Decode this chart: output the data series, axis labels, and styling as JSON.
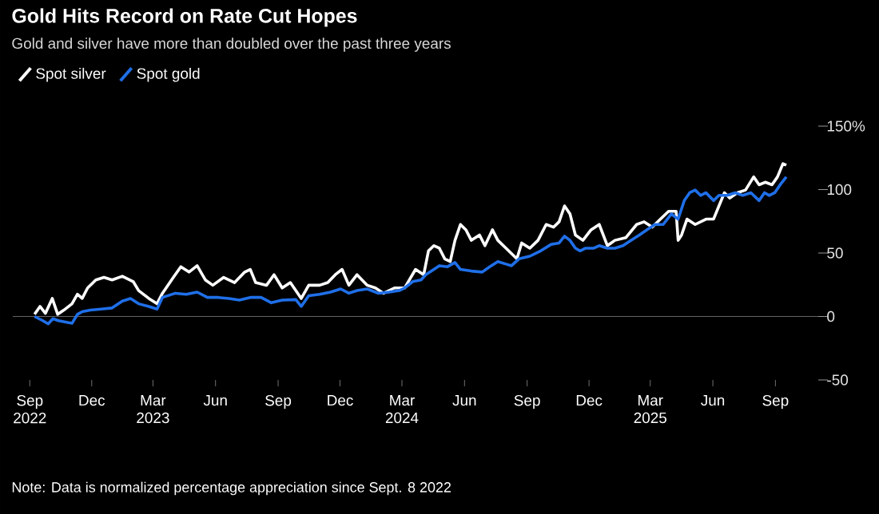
{
  "chart_data": {
    "type": "line",
    "title": "Gold Hits Record on Rate Cut Hopes",
    "subtitle": "Gold and silver have more than doubled over the past three years",
    "annotations": [
      "Note: Data is normalized percentage appreciation since Sept. 8 2022"
    ],
    "xlim": [
      "2022-08-07",
      "2025-11-03"
    ],
    "xticks": [
      {
        "value": "2022-09-01",
        "label": "Sep 2022"
      },
      {
        "value": "2022-12-01",
        "label": "Dec"
      },
      {
        "value": "2023-03-01",
        "label": "Mar 2023"
      },
      {
        "value": "2023-06-01",
        "label": "Jun"
      },
      {
        "value": "2023-09-01",
        "label": "Sep"
      },
      {
        "value": "2023-12-01",
        "label": "Dec"
      },
      {
        "value": "2024-03-01",
        "label": "Mar 2024"
      },
      {
        "value": "2024-06-01",
        "label": "Jun"
      },
      {
        "value": "2024-09-01",
        "label": "Sep"
      },
      {
        "value": "2024-12-01",
        "label": "Dec"
      },
      {
        "value": "2025-03-01",
        "label": "Mar 2025"
      },
      {
        "value": "2025-06-01",
        "label": "Jun"
      },
      {
        "value": "2025-09-01",
        "label": "Sep"
      }
    ],
    "ylim": [
      -50,
      150
    ],
    "yticks": [
      -50,
      0,
      50,
      100,
      {
        "value": 150,
        "label": "150%"
      }
    ],
    "ref_lines": [
      {
        "axis": "y",
        "value": 0,
        "color": "#808080"
      }
    ],
    "legend": "top left",
    "line_style": "solid",
    "grid": false,
    "series": [
      {
        "name": "Spot silver",
        "color": "#ffffff",
        "x": [
          "2022-09-08",
          "2022-09-16",
          "2022-09-24",
          "2022-10-04",
          "2022-10-12",
          "2022-10-21",
          "2022-11-02",
          "2022-11-10",
          "2022-11-17",
          "2022-11-25",
          "2022-12-07",
          "2022-12-19",
          "2022-12-31",
          "2023-01-15",
          "2023-01-31",
          "2023-02-08",
          "2023-02-23",
          "2023-03-07",
          "2023-03-15",
          "2023-03-31",
          "2023-04-11",
          "2023-04-23",
          "2023-05-05",
          "2023-05-17",
          "2023-05-28",
          "2023-06-13",
          "2023-06-29",
          "2023-07-14",
          "2023-07-22",
          "2023-07-30",
          "2023-08-15",
          "2023-08-26",
          "2023-09-07",
          "2023-09-19",
          "2023-10-05",
          "2023-10-16",
          "2023-11-01",
          "2023-11-13",
          "2023-11-24",
          "2023-12-04",
          "2023-12-14",
          "2023-12-26",
          "2024-01-10",
          "2024-01-22",
          "2024-02-03",
          "2024-02-19",
          "2024-03-05",
          "2024-03-21",
          "2024-04-02",
          "2024-04-09",
          "2024-04-17",
          "2024-04-25",
          "2024-05-03",
          "2024-05-11",
          "2024-05-18",
          "2024-05-26",
          "2024-06-03",
          "2024-06-11",
          "2024-06-23",
          "2024-07-01",
          "2024-07-12",
          "2024-07-20",
          "2024-08-01",
          "2024-08-09",
          "2024-08-17",
          "2024-08-24",
          "2024-09-05",
          "2024-09-17",
          "2024-09-29",
          "2024-10-10",
          "2024-10-18",
          "2024-10-26",
          "2024-11-03",
          "2024-11-11",
          "2024-11-22",
          "2024-12-04",
          "2024-12-16",
          "2024-12-28",
          "2025-01-08",
          "2025-01-24",
          "2025-02-09",
          "2025-02-20",
          "2025-03-04",
          "2025-03-16",
          "2025-03-28",
          "2025-04-08",
          "2025-04-11",
          "2025-04-16",
          "2025-04-24",
          "2025-05-06",
          "2025-05-22",
          "2025-06-02",
          "2025-06-10",
          "2025-06-18",
          "2025-06-26",
          "2025-07-07",
          "2025-07-19",
          "2025-07-31",
          "2025-08-08",
          "2025-08-17",
          "2025-08-27",
          "2025-09-04",
          "2025-09-12",
          "2025-09-17"
        ],
        "values": [
          1.7,
          7.9,
          2.5,
          14.2,
          1.7,
          5,
          10,
          17.5,
          14.2,
          22.5,
          28.8,
          30.8,
          28.8,
          31.7,
          27.5,
          20.4,
          14.2,
          10,
          18.3,
          30.8,
          39.2,
          35,
          40,
          28.8,
          24.6,
          30.8,
          26.7,
          35,
          37.1,
          26.7,
          24.6,
          32.9,
          22.5,
          26.7,
          14.2,
          24.6,
          24.6,
          26.7,
          32.9,
          37.1,
          24.6,
          32.9,
          24.6,
          22.5,
          18.3,
          22.5,
          22.5,
          37.1,
          32.9,
          51.7,
          55.8,
          53.8,
          45.4,
          43.3,
          60,
          72.5,
          68.3,
          60,
          64.2,
          55.8,
          68.3,
          60,
          53.8,
          49.6,
          45.4,
          57.9,
          53.8,
          60,
          72.5,
          70.4,
          74.6,
          87.1,
          80.8,
          64.2,
          60,
          68.3,
          72.5,
          55.8,
          60,
          62.1,
          72.5,
          74.6,
          70.4,
          76.7,
          82.9,
          82.9,
          60,
          64.2,
          76.7,
          72.5,
          76.7,
          76.7,
          87.1,
          97.5,
          93.3,
          97.5,
          99.6,
          110,
          103.8,
          105.8,
          103.8,
          110,
          120.4,
          119.2
        ]
      },
      {
        "name": "Spot gold",
        "color": "#1f6fe8",
        "x": [
          "2022-09-08",
          "2022-09-20",
          "2022-09-28",
          "2022-10-05",
          "2022-10-13",
          "2022-10-25",
          "2022-11-02",
          "2022-11-10",
          "2022-11-17",
          "2022-11-29",
          "2022-12-15",
          "2022-12-31",
          "2023-01-15",
          "2023-01-27",
          "2023-02-08",
          "2023-02-23",
          "2023-03-07",
          "2023-03-15",
          "2023-04-03",
          "2023-04-19",
          "2023-05-05",
          "2023-05-20",
          "2023-06-05",
          "2023-06-21",
          "2023-07-06",
          "2023-07-22",
          "2023-08-07",
          "2023-08-22",
          "2023-09-07",
          "2023-09-27",
          "2023-10-05",
          "2023-10-16",
          "2023-11-01",
          "2023-11-17",
          "2023-12-02",
          "2023-12-14",
          "2023-12-26",
          "2024-01-10",
          "2024-01-26",
          "2024-02-11",
          "2024-02-26",
          "2024-03-05",
          "2024-03-17",
          "2024-03-29",
          "2024-04-05",
          "2024-04-17",
          "2024-04-25",
          "2024-05-07",
          "2024-05-18",
          "2024-05-26",
          "2024-06-11",
          "2024-06-27",
          "2024-07-08",
          "2024-07-20",
          "2024-08-01",
          "2024-08-09",
          "2024-08-20",
          "2024-09-05",
          "2024-09-21",
          "2024-10-06",
          "2024-10-18",
          "2024-10-26",
          "2024-11-03",
          "2024-11-11",
          "2024-11-18",
          "2024-11-26",
          "2024-12-08",
          "2024-12-16",
          "2024-12-28",
          "2025-01-08",
          "2025-01-20",
          "2025-02-01",
          "2025-02-13",
          "2025-02-24",
          "2025-03-08",
          "2025-03-20",
          "2025-04-01",
          "2025-04-11",
          "2025-04-20",
          "2025-04-28",
          "2025-05-06",
          "2025-05-14",
          "2025-05-22",
          "2025-06-02",
          "2025-06-10",
          "2025-06-22",
          "2025-07-04",
          "2025-07-15",
          "2025-07-27",
          "2025-08-08",
          "2025-08-16",
          "2025-08-23",
          "2025-08-31",
          "2025-09-08",
          "2025-09-17"
        ],
        "values": [
          0,
          -3.3,
          -5.8,
          -1.7,
          -3.3,
          -4.6,
          -5.4,
          1.7,
          3.8,
          5,
          5.8,
          6.7,
          12.1,
          14.2,
          10,
          7.9,
          5.8,
          15,
          18.3,
          17.5,
          19.2,
          15,
          15,
          14.2,
          12.9,
          15,
          15,
          10.8,
          12.9,
          13.3,
          7.9,
          16.3,
          17.5,
          19.2,
          21.7,
          18.3,
          20.4,
          21.7,
          18.3,
          19.2,
          20.4,
          22.5,
          27.5,
          28.8,
          32.9,
          37.1,
          40,
          39.2,
          42.5,
          37.1,
          35.8,
          35,
          39.2,
          43.3,
          41.3,
          40,
          45.4,
          47.5,
          51.7,
          56.7,
          57.9,
          63.3,
          60,
          53.8,
          51.7,
          53.8,
          53.8,
          55.8,
          53.8,
          53.8,
          55.8,
          60,
          64.2,
          68.3,
          72.5,
          72.5,
          80.8,
          76.7,
          91.3,
          97.5,
          99.6,
          95.4,
          97.5,
          91.3,
          95.4,
          95.4,
          97.5,
          95.4,
          97.5,
          91.3,
          97.5,
          95.4,
          97.5,
          103.8,
          110
        ]
      }
    ]
  }
}
